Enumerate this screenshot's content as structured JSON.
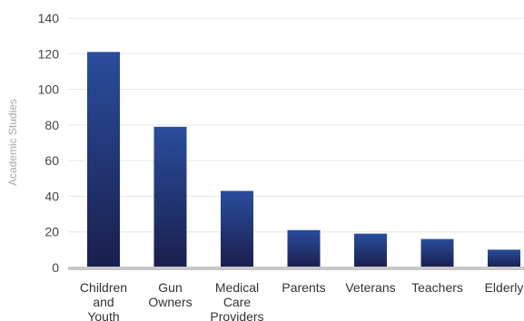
{
  "chart_data": {
    "type": "bar",
    "title": "",
    "xlabel": "",
    "ylabel": "Academic Studies",
    "ylim": [
      0,
      140
    ],
    "yticks": [
      0,
      20,
      40,
      60,
      80,
      100,
      120,
      140
    ],
    "grid": true,
    "legend": "none",
    "categories": [
      [
        "Children",
        "and",
        "Youth"
      ],
      [
        "Gun",
        "Owners"
      ],
      [
        "Medical",
        "Care",
        "Providers"
      ],
      [
        "Parents"
      ],
      [
        "Veterans"
      ],
      [
        "Teachers"
      ],
      [
        "Elderly"
      ]
    ],
    "values": [
      121,
      79,
      43,
      21,
      19,
      16,
      10
    ],
    "colors": {
      "bar_top": "#2a4d9c",
      "bar_bottom": "#1a1f4d",
      "grid": "#e6e6e6",
      "baseline": "#c8c8c8"
    }
  }
}
